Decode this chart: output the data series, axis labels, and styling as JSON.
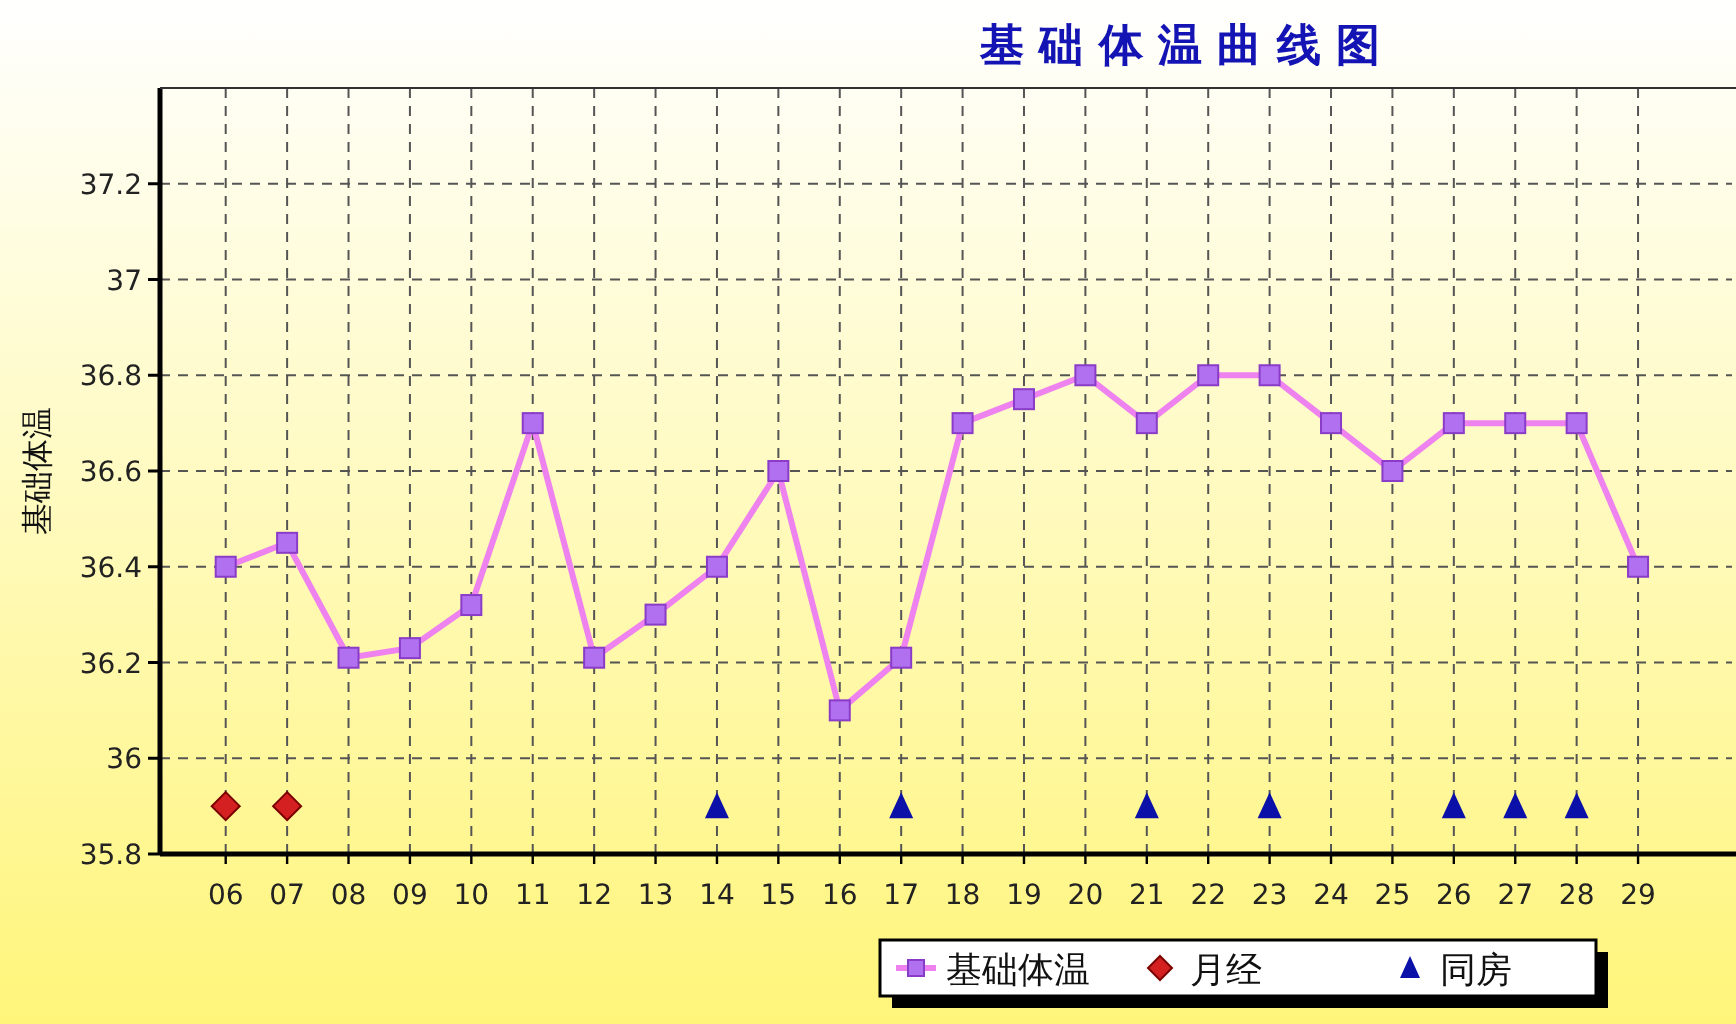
{
  "chart_data": {
    "type": "line",
    "title": "基 础 体 温 曲 线 图",
    "ylabel": "基础体温",
    "categories": [
      "06",
      "07",
      "08",
      "09",
      "10",
      "11",
      "12",
      "13",
      "14",
      "15",
      "16",
      "17",
      "18",
      "19",
      "20",
      "21",
      "22",
      "23",
      "24",
      "25",
      "26",
      "27",
      "28",
      "29"
    ],
    "series": [
      {
        "name": "基础体温",
        "marker": "square",
        "color": "#ee82ee",
        "values": [
          36.4,
          36.45,
          36.21,
          36.23,
          36.32,
          36.7,
          36.21,
          36.3,
          36.4,
          36.6,
          36.1,
          36.21,
          36.7,
          36.75,
          36.8,
          36.7,
          36.8,
          36.8,
          36.7,
          36.6,
          36.7,
          36.7,
          36.7,
          36.4
        ]
      },
      {
        "name": "月经",
        "type": "scatter",
        "marker": "diamond",
        "color": "#d42020",
        "values": [
          35.9,
          35.9,
          null,
          null,
          null,
          null,
          null,
          null,
          null,
          null,
          null,
          null,
          null,
          null,
          null,
          null,
          null,
          null,
          null,
          null,
          null,
          null,
          null,
          null
        ]
      },
      {
        "name": "同房",
        "type": "scatter",
        "marker": "triangle",
        "color": "#0a10a8",
        "values": [
          null,
          null,
          null,
          null,
          null,
          null,
          null,
          null,
          35.9,
          null,
          null,
          35.9,
          null,
          null,
          null,
          35.9,
          null,
          35.9,
          null,
          null,
          35.9,
          35.9,
          35.9,
          null
        ]
      }
    ],
    "ylim": [
      35.8,
      37.4
    ],
    "yticks": [
      35.8,
      36,
      36.2,
      36.4,
      36.6,
      36.8,
      37,
      37.2
    ],
    "grid": true,
    "legend": "bottom"
  }
}
